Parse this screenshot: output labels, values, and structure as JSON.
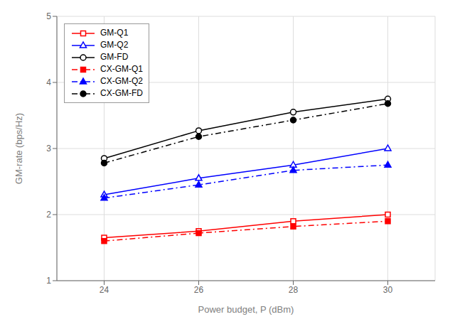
{
  "chart_data": {
    "type": "line",
    "x": [
      24,
      26,
      28,
      30
    ],
    "xlabel": "Power budget, P (dBm)",
    "ylabel": "GM-rate (bps/Hz)",
    "xlim": [
      23,
      31
    ],
    "ylim": [
      1,
      5
    ],
    "xticks": [
      24,
      26,
      28,
      30
    ],
    "yticks": [
      1,
      2,
      3,
      4,
      5
    ],
    "grid": true,
    "legend": "upper left",
    "series": [
      {
        "name": "GM-Q1",
        "color": "#FF0000",
        "marker": "open_square",
        "line_style": "solid",
        "values": [
          1.65,
          1.75,
          1.9,
          2.0
        ]
      },
      {
        "name": "GM-Q2",
        "color": "#0000FF",
        "marker": "open_triangle",
        "line_style": "solid",
        "values": [
          2.3,
          2.55,
          2.75,
          3.0
        ]
      },
      {
        "name": "GM-FD",
        "color": "#000000",
        "marker": "open_circle",
        "line_style": "solid",
        "values": [
          2.85,
          3.27,
          3.55,
          3.75
        ]
      },
      {
        "name": "CX-GM-Q1",
        "color": "#FF0000",
        "marker": "square",
        "line_style": "dashdot",
        "values": [
          1.6,
          1.72,
          1.82,
          1.9
        ]
      },
      {
        "name": "CX-GM-Q2",
        "color": "#0000FF",
        "marker": "triangle",
        "line_style": "dashdot",
        "values": [
          2.25,
          2.45,
          2.67,
          2.75
        ]
      },
      {
        "name": "CX-GM-FD",
        "color": "#000000",
        "marker": "circle",
        "line_style": "dashdot",
        "values": [
          2.78,
          3.18,
          3.43,
          3.68
        ]
      }
    ]
  }
}
